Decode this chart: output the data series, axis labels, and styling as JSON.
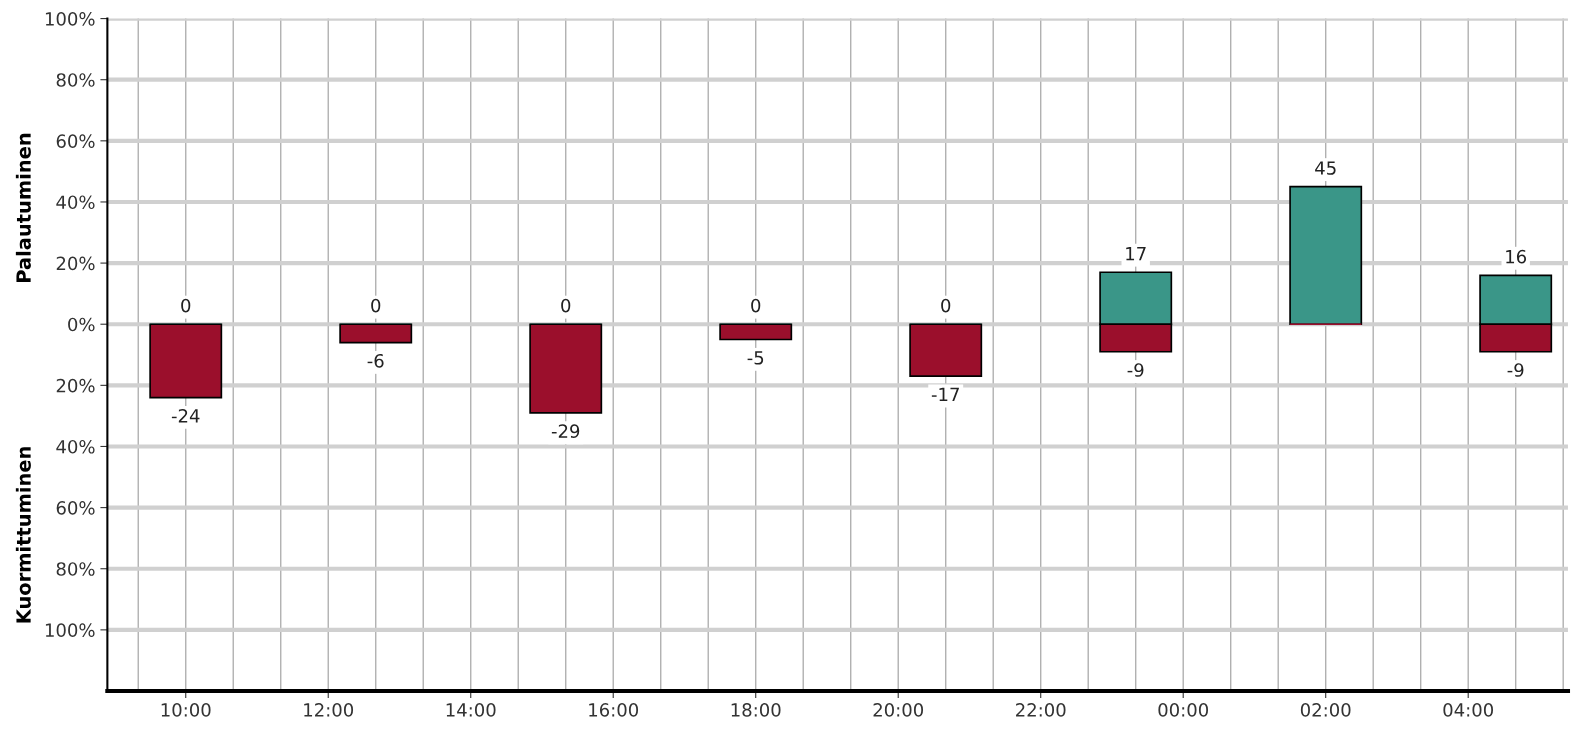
{
  "chart_data": {
    "type": "bar",
    "ylabel": "Palautuminen",
    "annotations": [
      "Kuormittuminen"
    ],
    "x": [
      "2000-01-01T10:00",
      "2000-01-01T12:40",
      "2000-01-01T15:20",
      "2000-01-01T18:00",
      "2000-01-01T20:40",
      "2000-01-01T23:20",
      "2000-01-02T02:00",
      "2000-01-02T04:40"
    ],
    "series": [
      {
        "color": "#3a9688",
        "values": [
          0,
          0,
          0,
          0,
          0,
          17,
          45,
          16
        ],
        "value_labels": [
          "0",
          "0",
          "0",
          "0",
          "0",
          "17",
          "45",
          "16"
        ]
      },
      {
        "color": "#9b0f2c",
        "values": [
          -24,
          -6,
          -29,
          -5,
          -17,
          -9,
          0,
          -9
        ],
        "value_labels": [
          "-24",
          "-6",
          "-29",
          "-5",
          "-17",
          "-9",
          null,
          "-9"
        ]
      }
    ],
    "xlim": [
      "2000-01-01T08:54",
      "2000-01-02T05:24"
    ],
    "xticks": [
      {
        "value": "2000-01-01T09:20",
        "label": null
      },
      {
        "value": "2000-01-01T10:00",
        "label": "10:00"
      },
      {
        "value": "2000-01-01T10:40",
        "label": null
      },
      {
        "value": "2000-01-01T11:20",
        "label": null
      },
      {
        "value": "2000-01-01T12:00",
        "label": "12:00"
      },
      {
        "value": "2000-01-01T12:40",
        "label": null
      },
      {
        "value": "2000-01-01T13:20",
        "label": null
      },
      {
        "value": "2000-01-01T14:00",
        "label": "14:00"
      },
      {
        "value": "2000-01-01T14:40",
        "label": null
      },
      {
        "value": "2000-01-01T15:20",
        "label": null
      },
      {
        "value": "2000-01-01T16:00",
        "label": "16:00"
      },
      {
        "value": "2000-01-01T16:40",
        "label": null
      },
      {
        "value": "2000-01-01T17:20",
        "label": null
      },
      {
        "value": "2000-01-01T18:00",
        "label": "18:00"
      },
      {
        "value": "2000-01-01T18:40",
        "label": null
      },
      {
        "value": "2000-01-01T19:20",
        "label": null
      },
      {
        "value": "2000-01-01T20:00",
        "label": "20:00"
      },
      {
        "value": "2000-01-01T20:40",
        "label": null
      },
      {
        "value": "2000-01-01T21:20",
        "label": null
      },
      {
        "value": "2000-01-01T22:00",
        "label": "22:00"
      },
      {
        "value": "2000-01-01T22:40",
        "label": null
      },
      {
        "value": "2000-01-01T23:20",
        "label": null
      },
      {
        "value": "2000-01-02T00:00",
        "label": "00:00"
      },
      {
        "value": "2000-01-02T00:40",
        "label": null
      },
      {
        "value": "2000-01-02T01:20",
        "label": null
      },
      {
        "value": "2000-01-02T02:00",
        "label": "02:00"
      },
      {
        "value": "2000-01-02T02:40",
        "label": null
      },
      {
        "value": "2000-01-02T03:20",
        "label": null
      },
      {
        "value": "2000-01-02T04:00",
        "label": "04:00"
      },
      {
        "value": "2000-01-02T04:40",
        "label": null
      },
      {
        "value": "2000-01-02T05:20",
        "label": null
      }
    ],
    "ylim": [
      -120,
      100
    ],
    "yticks": [
      {
        "value": 100,
        "label": "100%"
      },
      {
        "value": 80,
        "label": "80%"
      },
      {
        "value": 60,
        "label": "60%"
      },
      {
        "value": 40,
        "label": "40%"
      },
      {
        "value": 20,
        "label": "20%"
      },
      {
        "value": 0,
        "label": "0%"
      },
      {
        "value": -20,
        "label": "20%"
      },
      {
        "value": -40,
        "label": "40%"
      },
      {
        "value": -60,
        "label": "60%"
      },
      {
        "value": -80,
        "label": "80%"
      },
      {
        "value": -100,
        "label": "100%"
      }
    ],
    "grid": true
  }
}
